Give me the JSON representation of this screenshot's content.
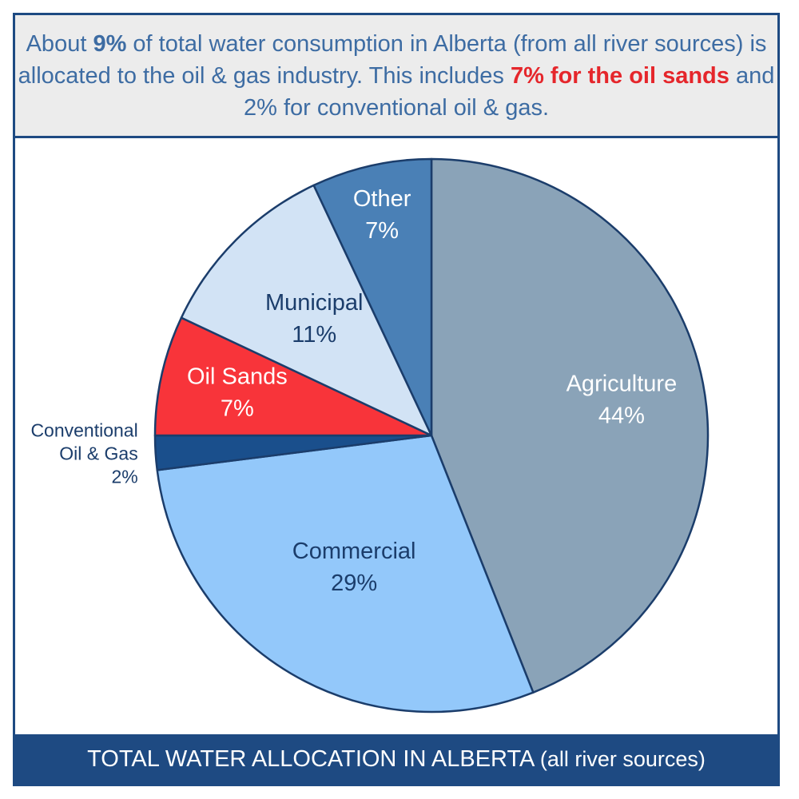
{
  "header": {
    "p1": "About ",
    "p2": "9%",
    "p3": " of total water consumption in Alberta (from all river sources) is allocated to the oil & gas industry.  This includes ",
    "p4": "7% for the oil sands",
    "p5": " and 2% for conventional oil & gas."
  },
  "footer": {
    "title": "TOTAL WATER ALLOCATION IN ALBERTA",
    "subtitle": "(all river sources)"
  },
  "colors": {
    "frame": "#1e4a82",
    "header_bg": "#ececec",
    "header_text": "#3d6ca3",
    "highlight": "#e5262b"
  },
  "chart_data": {
    "type": "pie",
    "title": "TOTAL WATER ALLOCATION IN ALBERTA (all river sources)",
    "unit": "%",
    "start_angle_deg": 0,
    "direction": "clockwise",
    "slices": [
      {
        "label": "Agriculture",
        "value": 44,
        "display": "44%",
        "color": "#8aa3b8",
        "text_color": "#ffffff"
      },
      {
        "label": "Commercial",
        "value": 29,
        "display": "29%",
        "color": "#93c8fa",
        "text_color": "#1b3d6b"
      },
      {
        "label": "Conventional Oil & Gas",
        "label_lines": [
          "Conventional",
          "Oil & Gas"
        ],
        "value": 2,
        "display": "2%",
        "color": "#1a4f8c",
        "text_color": "#1b3d6b",
        "label_outside": true
      },
      {
        "label": "Oil Sands",
        "value": 7,
        "display": "7%",
        "color": "#f8343a",
        "text_color": "#ffffff"
      },
      {
        "label": "Municipal",
        "value": 11,
        "display": "11%",
        "color": "#d2e3f5",
        "text_color": "#1b3d6b"
      },
      {
        "label": "Other",
        "value": 7,
        "display": "7%",
        "color": "#4a80b6",
        "text_color": "#ffffff"
      }
    ]
  }
}
